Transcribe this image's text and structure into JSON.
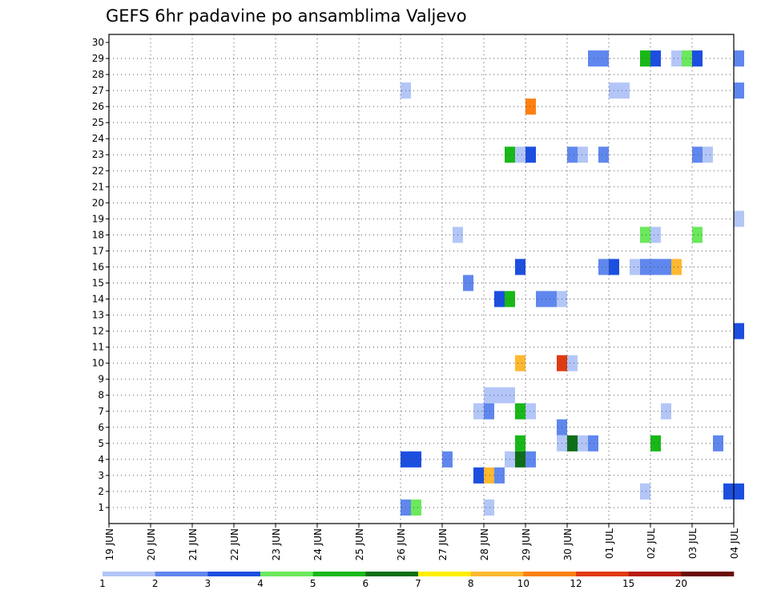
{
  "chart_data": {
    "type": "heatmap",
    "title": "GEFS 6hr padavine po ansamblima Valjevo",
    "xlabel": "",
    "ylabel": "",
    "x_start": "2024-06-19",
    "x_end": "2024-07-04",
    "x_step_hours": 6,
    "x_tick_labels": [
      "19 JUN",
      "20 JUN",
      "21 JUN",
      "22 JUN",
      "23 JUN",
      "24 JUN",
      "25 JUN",
      "26 JUN",
      "27 JUN",
      "28 JUN",
      "29 JUN",
      "30 JUN",
      "01 JUL",
      "02 JUL",
      "03 JUL",
      "04 JUL"
    ],
    "y_tick_labels": [
      1,
      2,
      3,
      4,
      5,
      6,
      7,
      8,
      9,
      10,
      11,
      12,
      13,
      14,
      15,
      16,
      17,
      18,
      19,
      20,
      21,
      22,
      23,
      24,
      25,
      26,
      27,
      28,
      29,
      30
    ],
    "grid": true,
    "colorbar": {
      "position": "bottom",
      "labels": [
        "1",
        "2",
        "3",
        "4",
        "5",
        "6",
        "7",
        "8",
        "10",
        "12",
        "15",
        "20"
      ],
      "colors": [
        "#b3c6f7",
        "#5f87ee",
        "#1c4fe0",
        "#6be85c",
        "#18b818",
        "#0e6e18",
        "#ffee00",
        "#ffb830",
        "#ff8010",
        "#e03a10",
        "#b81c10",
        "#6a0a0a"
      ]
    },
    "cells": [
      {
        "member": 29,
        "time": "2024-06-30T12",
        "cls": 2
      },
      {
        "member": 29,
        "time": "2024-06-30T18",
        "cls": 2
      },
      {
        "member": 29,
        "time": "2024-07-01T18",
        "cls": 5
      },
      {
        "member": 29,
        "time": "2024-07-02T00",
        "cls": 3
      },
      {
        "member": 29,
        "time": "2024-07-02T12",
        "cls": 1
      },
      {
        "member": 29,
        "time": "2024-07-02T18",
        "cls": 4
      },
      {
        "member": 29,
        "time": "2024-07-03T00",
        "cls": 3
      },
      {
        "member": 29,
        "time": "2024-07-04T00",
        "cls": 2
      },
      {
        "member": 27,
        "time": "2024-06-26T00",
        "cls": 1
      },
      {
        "member": 27,
        "time": "2024-07-01T00",
        "cls": 1
      },
      {
        "member": 27,
        "time": "2024-07-01T06",
        "cls": 1
      },
      {
        "member": 27,
        "time": "2024-07-04T00",
        "cls": 2
      },
      {
        "member": 26,
        "time": "2024-06-29T00",
        "cls": 9
      },
      {
        "member": 23,
        "time": "2024-06-28T12",
        "cls": 5
      },
      {
        "member": 23,
        "time": "2024-06-28T18",
        "cls": 1
      },
      {
        "member": 23,
        "time": "2024-06-29T00",
        "cls": 3
      },
      {
        "member": 23,
        "time": "2024-06-30T00",
        "cls": 2
      },
      {
        "member": 23,
        "time": "2024-06-30T06",
        "cls": 1
      },
      {
        "member": 23,
        "time": "2024-06-30T18",
        "cls": 2
      },
      {
        "member": 23,
        "time": "2024-07-03T00",
        "cls": 2
      },
      {
        "member": 23,
        "time": "2024-07-03T06",
        "cls": 1
      },
      {
        "member": 19,
        "time": "2024-07-04T00",
        "cls": 1
      },
      {
        "member": 18,
        "time": "2024-06-27T06",
        "cls": 1
      },
      {
        "member": 18,
        "time": "2024-07-01T18",
        "cls": 4
      },
      {
        "member": 18,
        "time": "2024-07-02T00",
        "cls": 1
      },
      {
        "member": 18,
        "time": "2024-07-03T00",
        "cls": 4
      },
      {
        "member": 16,
        "time": "2024-06-28T18",
        "cls": 3
      },
      {
        "member": 16,
        "time": "2024-06-30T18",
        "cls": 2
      },
      {
        "member": 16,
        "time": "2024-07-01T00",
        "cls": 3
      },
      {
        "member": 16,
        "time": "2024-07-01T12",
        "cls": 1
      },
      {
        "member": 16,
        "time": "2024-07-01T18",
        "cls": 2
      },
      {
        "member": 16,
        "time": "2024-07-02T00",
        "cls": 2
      },
      {
        "member": 16,
        "time": "2024-07-02T06",
        "cls": 2
      },
      {
        "member": 16,
        "time": "2024-07-02T12",
        "cls": 8
      },
      {
        "member": 15,
        "time": "2024-06-27T12",
        "cls": 2
      },
      {
        "member": 14,
        "time": "2024-06-28T06",
        "cls": 3
      },
      {
        "member": 14,
        "time": "2024-06-28T12",
        "cls": 5
      },
      {
        "member": 14,
        "time": "2024-06-29T06",
        "cls": 2
      },
      {
        "member": 14,
        "time": "2024-06-29T12",
        "cls": 2
      },
      {
        "member": 14,
        "time": "2024-06-29T18",
        "cls": 1
      },
      {
        "member": 12,
        "time": "2024-07-04T00",
        "cls": 3
      },
      {
        "member": 10,
        "time": "2024-06-28T18",
        "cls": 8
      },
      {
        "member": 10,
        "time": "2024-06-29T18",
        "cls": 10
      },
      {
        "member": 10,
        "time": "2024-06-30T00",
        "cls": 1
      },
      {
        "member": 8,
        "time": "2024-06-28T00",
        "cls": 1
      },
      {
        "member": 8,
        "time": "2024-06-28T06",
        "cls": 1
      },
      {
        "member": 8,
        "time": "2024-06-28T12",
        "cls": 1
      },
      {
        "member": 7,
        "time": "2024-06-27T18",
        "cls": 1
      },
      {
        "member": 7,
        "time": "2024-06-28T00",
        "cls": 2
      },
      {
        "member": 7,
        "time": "2024-06-28T18",
        "cls": 5
      },
      {
        "member": 7,
        "time": "2024-06-29T00",
        "cls": 1
      },
      {
        "member": 7,
        "time": "2024-07-02T06",
        "cls": 1
      },
      {
        "member": 6,
        "time": "2024-06-29T18",
        "cls": 2
      },
      {
        "member": 5,
        "time": "2024-06-28T18",
        "cls": 5
      },
      {
        "member": 5,
        "time": "2024-06-29T18",
        "cls": 1
      },
      {
        "member": 5,
        "time": "2024-06-30T00",
        "cls": 6
      },
      {
        "member": 5,
        "time": "2024-06-30T06",
        "cls": 1
      },
      {
        "member": 5,
        "time": "2024-06-30T12",
        "cls": 2
      },
      {
        "member": 5,
        "time": "2024-07-02T00",
        "cls": 5
      },
      {
        "member": 5,
        "time": "2024-07-03T12",
        "cls": 2
      },
      {
        "member": 4,
        "time": "2024-06-26T00",
        "cls": 3
      },
      {
        "member": 4,
        "time": "2024-06-26T06",
        "cls": 3
      },
      {
        "member": 4,
        "time": "2024-06-27T00",
        "cls": 2
      },
      {
        "member": 4,
        "time": "2024-06-28T12",
        "cls": 1
      },
      {
        "member": 4,
        "time": "2024-06-28T18",
        "cls": 6
      },
      {
        "member": 4,
        "time": "2024-06-29T00",
        "cls": 2
      },
      {
        "member": 3,
        "time": "2024-06-27T18",
        "cls": 3
      },
      {
        "member": 3,
        "time": "2024-06-28T00",
        "cls": 8
      },
      {
        "member": 3,
        "time": "2024-06-28T06",
        "cls": 2
      },
      {
        "member": 2,
        "time": "2024-07-01T18",
        "cls": 1
      },
      {
        "member": 2,
        "time": "2024-07-03T18",
        "cls": 3
      },
      {
        "member": 2,
        "time": "2024-07-04T00",
        "cls": 3
      },
      {
        "member": 1,
        "time": "2024-06-26T00",
        "cls": 2
      },
      {
        "member": 1,
        "time": "2024-06-26T06",
        "cls": 4
      },
      {
        "member": 1,
        "time": "2024-06-28T00",
        "cls": 1
      }
    ]
  }
}
